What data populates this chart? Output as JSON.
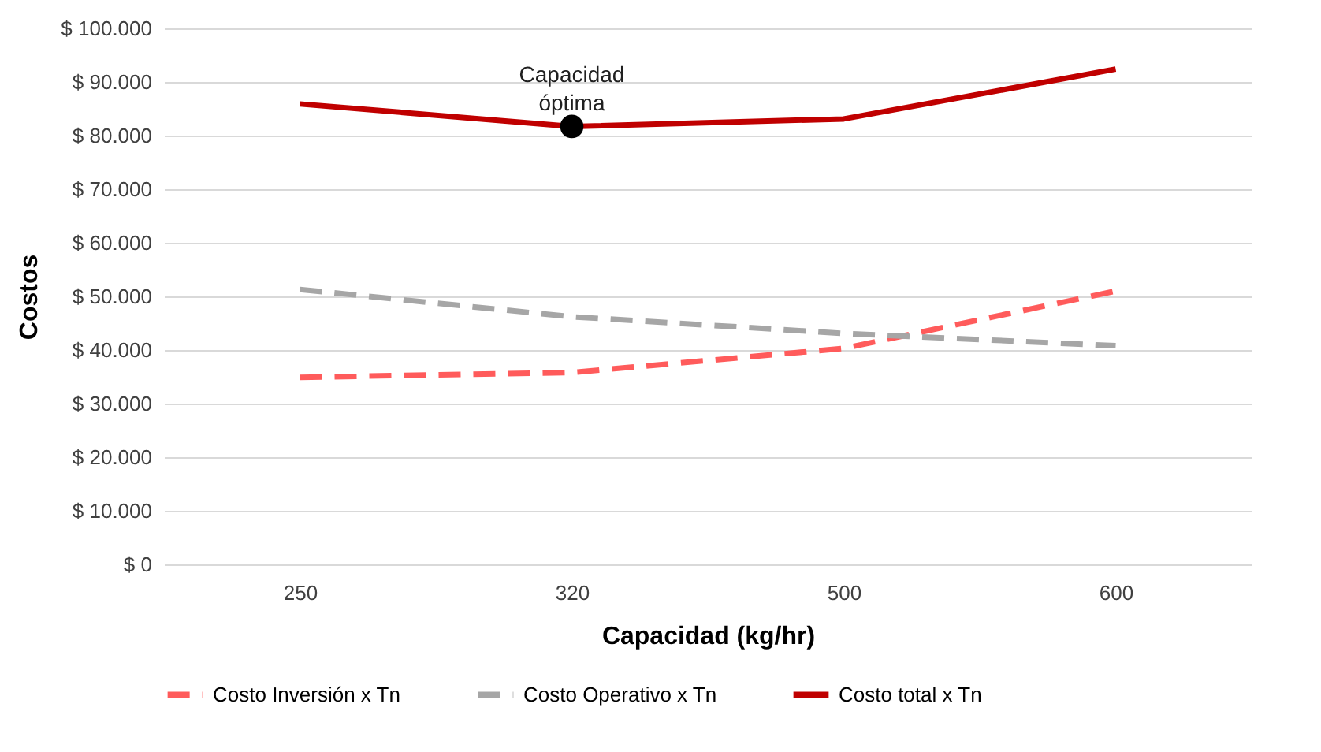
{
  "chart_data": {
    "type": "line",
    "xlabel": "Capacidad (kg/hr)",
    "ylabel": "Costos",
    "categories": [
      "250",
      "320",
      "500",
      "600"
    ],
    "series": [
      {
        "name": "Costo Inversión x Tn",
        "color": "#ff5b5b",
        "line_style": "dashed",
        "values": [
          34900,
          35800,
          40300,
          51000
        ]
      },
      {
        "name": "Costo Operativo x Tn",
        "color": "#a6a6a6",
        "line_style": "dashed",
        "values": [
          51300,
          46200,
          43100,
          40800
        ]
      },
      {
        "name": "Costo total x Tn",
        "color": "#c00000",
        "line_style": "solid",
        "values": [
          85900,
          81700,
          83100,
          92400
        ]
      },
      {
        "type": "scatter",
        "color": "#000000",
        "marker": "circle",
        "x": [
          "320"
        ],
        "values": [
          81700
        ]
      }
    ],
    "annotations": [
      {
        "text": "Capacidad óptima",
        "x": "320",
        "y": 81700
      }
    ],
    "ylim": [
      0,
      100000
    ],
    "yticks": [
      {
        "value": 0,
        "label": "$ 0"
      },
      {
        "value": 10000,
        "label": "$ 10.000"
      },
      {
        "value": 20000,
        "label": "$ 20.000"
      },
      {
        "value": 30000,
        "label": "$ 30.000"
      },
      {
        "value": 40000,
        "label": "$ 40.000"
      },
      {
        "value": 50000,
        "label": "$ 50.000"
      },
      {
        "value": 60000,
        "label": "$ 60.000"
      },
      {
        "value": 70000,
        "label": "$ 70.000"
      },
      {
        "value": 80000,
        "label": "$ 80.000"
      },
      {
        "value": 90000,
        "label": "$ 90.000"
      },
      {
        "value": 100000,
        "label": "$ 100.000"
      }
    ],
    "grid": "y",
    "legend": "bottom"
  }
}
